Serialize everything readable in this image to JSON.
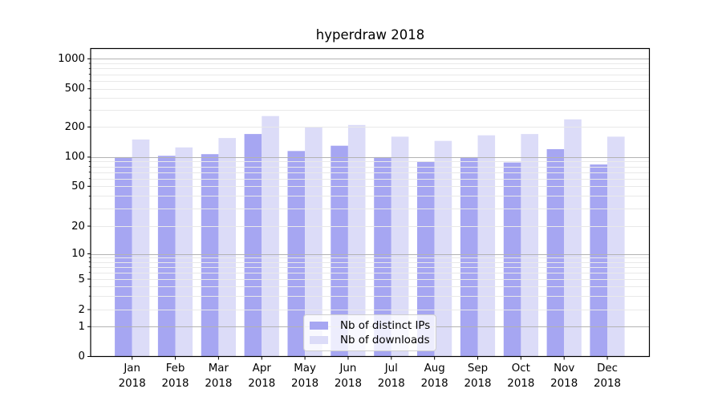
{
  "title": "hyperdraw 2018",
  "chart_data": {
    "type": "bar",
    "title": "hyperdraw 2018",
    "categories": [
      "Jan 2018",
      "Feb 2018",
      "Mar 2018",
      "Apr 2018",
      "May 2018",
      "Jun 2018",
      "Jul 2018",
      "Aug 2018",
      "Sep 2018",
      "Oct 2018",
      "Nov 2018",
      "Dec 2018"
    ],
    "series": [
      {
        "name": "Nb of distinct IPs",
        "color": "#a6a6f2",
        "values": [
          100,
          103,
          107,
          170,
          115,
          130,
          100,
          90,
          100,
          88,
          120,
          84
        ]
      },
      {
        "name": "Nb of downloads",
        "color": "#dcdcf8",
        "values": [
          150,
          125,
          155,
          260,
          200,
          210,
          160,
          145,
          165,
          170,
          240,
          160
        ]
      }
    ],
    "xlabel": "",
    "ylabel": "",
    "yscale": "symlog",
    "ylim": [
      0,
      1270
    ],
    "y_ticks": [
      0,
      1,
      2,
      5,
      10,
      20,
      50,
      100,
      200,
      500,
      1000
    ],
    "grid": true,
    "legend_position": "lower center",
    "colors": {
      "major_gridline": "#b3b3b3",
      "minor_gridline": "#e9e9e9",
      "axis": "#000000",
      "background": "#ffffff"
    }
  }
}
